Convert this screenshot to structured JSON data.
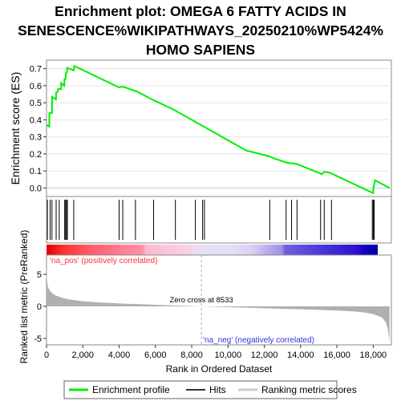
{
  "title_lines": [
    "Enrichment plot: OMEGA 6 FATTY ACIDS IN",
    "SENESCENCE%WIKIPATHWAYS_20250210%WP5424%",
    "HOMO SAPIENS"
  ],
  "chart_data": {
    "type": "line",
    "es_axis": {
      "ylabel": "Enrichment score (ES)",
      "ylim": [
        -0.05,
        0.75
      ],
      "ticks": [
        "0.0",
        "0.1",
        "0.2",
        "0.3",
        "0.4",
        "0.5",
        "0.6",
        "0.7"
      ],
      "tick_values": [
        0.0,
        0.1,
        0.2,
        0.3,
        0.4,
        0.5,
        0.6,
        0.7
      ]
    },
    "metric_axis": {
      "ylabel": "Ranked list metric (PreRanked)",
      "ylim": [
        -6,
        8
      ],
      "ticks": [
        "-5",
        "0",
        "5"
      ],
      "tick_values": [
        -5,
        0,
        5
      ]
    },
    "x_axis": {
      "xlabel": "Rank in Ordered Dataset",
      "xlim": [
        0,
        19000
      ],
      "ticks": [
        "0",
        "2,000",
        "4,000",
        "6,000",
        "8,000",
        "10,000",
        "12,000",
        "14,000",
        "16,000",
        "18,000"
      ],
      "tick_values": [
        0,
        2000,
        4000,
        6000,
        8000,
        10000,
        12000,
        14000,
        16000,
        18000
      ]
    },
    "enrichment_profile": {
      "x": [
        0,
        150,
        160,
        300,
        310,
        520,
        530,
        620,
        630,
        800,
        810,
        980,
        990,
        1050,
        1060,
        1130,
        1140,
        1500,
        1510,
        1520,
        1540,
        4000,
        4200,
        5000,
        5800,
        7000,
        8000,
        9000,
        10000,
        11000,
        12300,
        12500,
        13200,
        13400,
        13600,
        13800,
        15100,
        15150,
        15300,
        15600,
        18000,
        18010,
        18100,
        18900
      ],
      "y": [
        0.37,
        0.36,
        0.44,
        0.44,
        0.535,
        0.52,
        0.56,
        0.565,
        0.58,
        0.58,
        0.615,
        0.6,
        0.64,
        0.64,
        0.67,
        0.68,
        0.705,
        0.69,
        0.7,
        0.71,
        0.715,
        0.59,
        0.595,
        0.565,
        0.52,
        0.46,
        0.4,
        0.34,
        0.28,
        0.22,
        0.185,
        0.175,
        0.15,
        0.145,
        0.145,
        0.14,
        0.085,
        0.08,
        0.095,
        0.09,
        -0.03,
        0.0,
        0.045,
        0.0
      ]
    },
    "hits": [
      50,
      200,
      300,
      530,
      700,
      1000,
      1050,
      1100,
      1150,
      1500,
      4000,
      4200,
      4900,
      5900,
      7100,
      8200,
      8600,
      8700,
      12300,
      13200,
      13500,
      13800,
      15100,
      15300,
      15700,
      17950,
      18000,
      18050
    ],
    "metric_profile": {
      "x": [
        0,
        20,
        60,
        150,
        300,
        500,
        800,
        1200,
        2000,
        3000,
        4000,
        6000,
        8000,
        8533,
        10000,
        12000,
        14000,
        15000,
        16000,
        17000,
        17500,
        18000,
        18300,
        18500,
        18700,
        18800,
        18900
      ],
      "y": [
        7.0,
        4.5,
        3.2,
        2.6,
        2.1,
        1.7,
        1.4,
        1.1,
        0.8,
        0.6,
        0.45,
        0.25,
        0.05,
        0.0,
        -0.12,
        -0.3,
        -0.45,
        -0.55,
        -0.65,
        -0.8,
        -0.95,
        -1.2,
        -1.5,
        -1.8,
        -2.5,
        -3.5,
        -5.5
      ]
    },
    "zero_cross": {
      "x": 8533,
      "label": "Zero cross at 8533"
    },
    "annotations": {
      "pos": "'na_pos' (positively correlated)",
      "neg": "'na_neg' (negatively correlated)"
    },
    "colors": {
      "profile": "#00ee00",
      "hits": "#000000",
      "metric_fill": "#b0b0b0",
      "pos_text": "#ff0000",
      "neg_text": "#0000ff",
      "zero_line": "#aaaaaa"
    },
    "legend": {
      "placement": "bottom",
      "items": [
        "Enrichment profile",
        "Hits",
        "Ranking metric scores"
      ]
    }
  }
}
